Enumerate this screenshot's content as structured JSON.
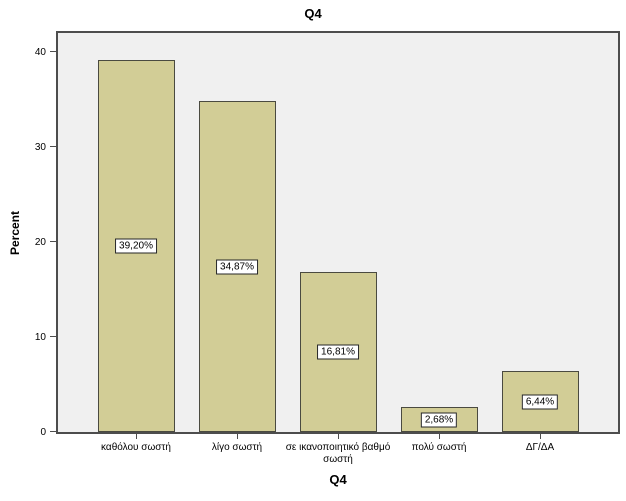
{
  "chart_data": {
    "type": "bar",
    "title": "Q4",
    "xlabel": "Q4",
    "ylabel": "Percent",
    "categories": [
      "καθόλου σωστή",
      "λίγο σωστή",
      "σε ικανοποιητικό βαθμό σωστή",
      "πολύ σωστή",
      "ΔΓ/ΔΑ"
    ],
    "values": [
      39.2,
      34.87,
      16.81,
      2.68,
      6.44
    ],
    "value_labels": [
      "39,20%",
      "34,87%",
      "16,81%",
      "2,68%",
      "6,44%"
    ],
    "yticks": [
      0,
      10,
      20,
      30,
      40
    ],
    "ylim": [
      0,
      42
    ],
    "grid": false,
    "legend": false,
    "colors": {
      "bar_fill": "#d2cd96",
      "bar_border": "#4a4a40",
      "plot_bg": "#f0f0f0",
      "frame_border": "#4d4d4d",
      "label_box_bg": "#ffffff",
      "label_box_border": "#262626"
    }
  }
}
